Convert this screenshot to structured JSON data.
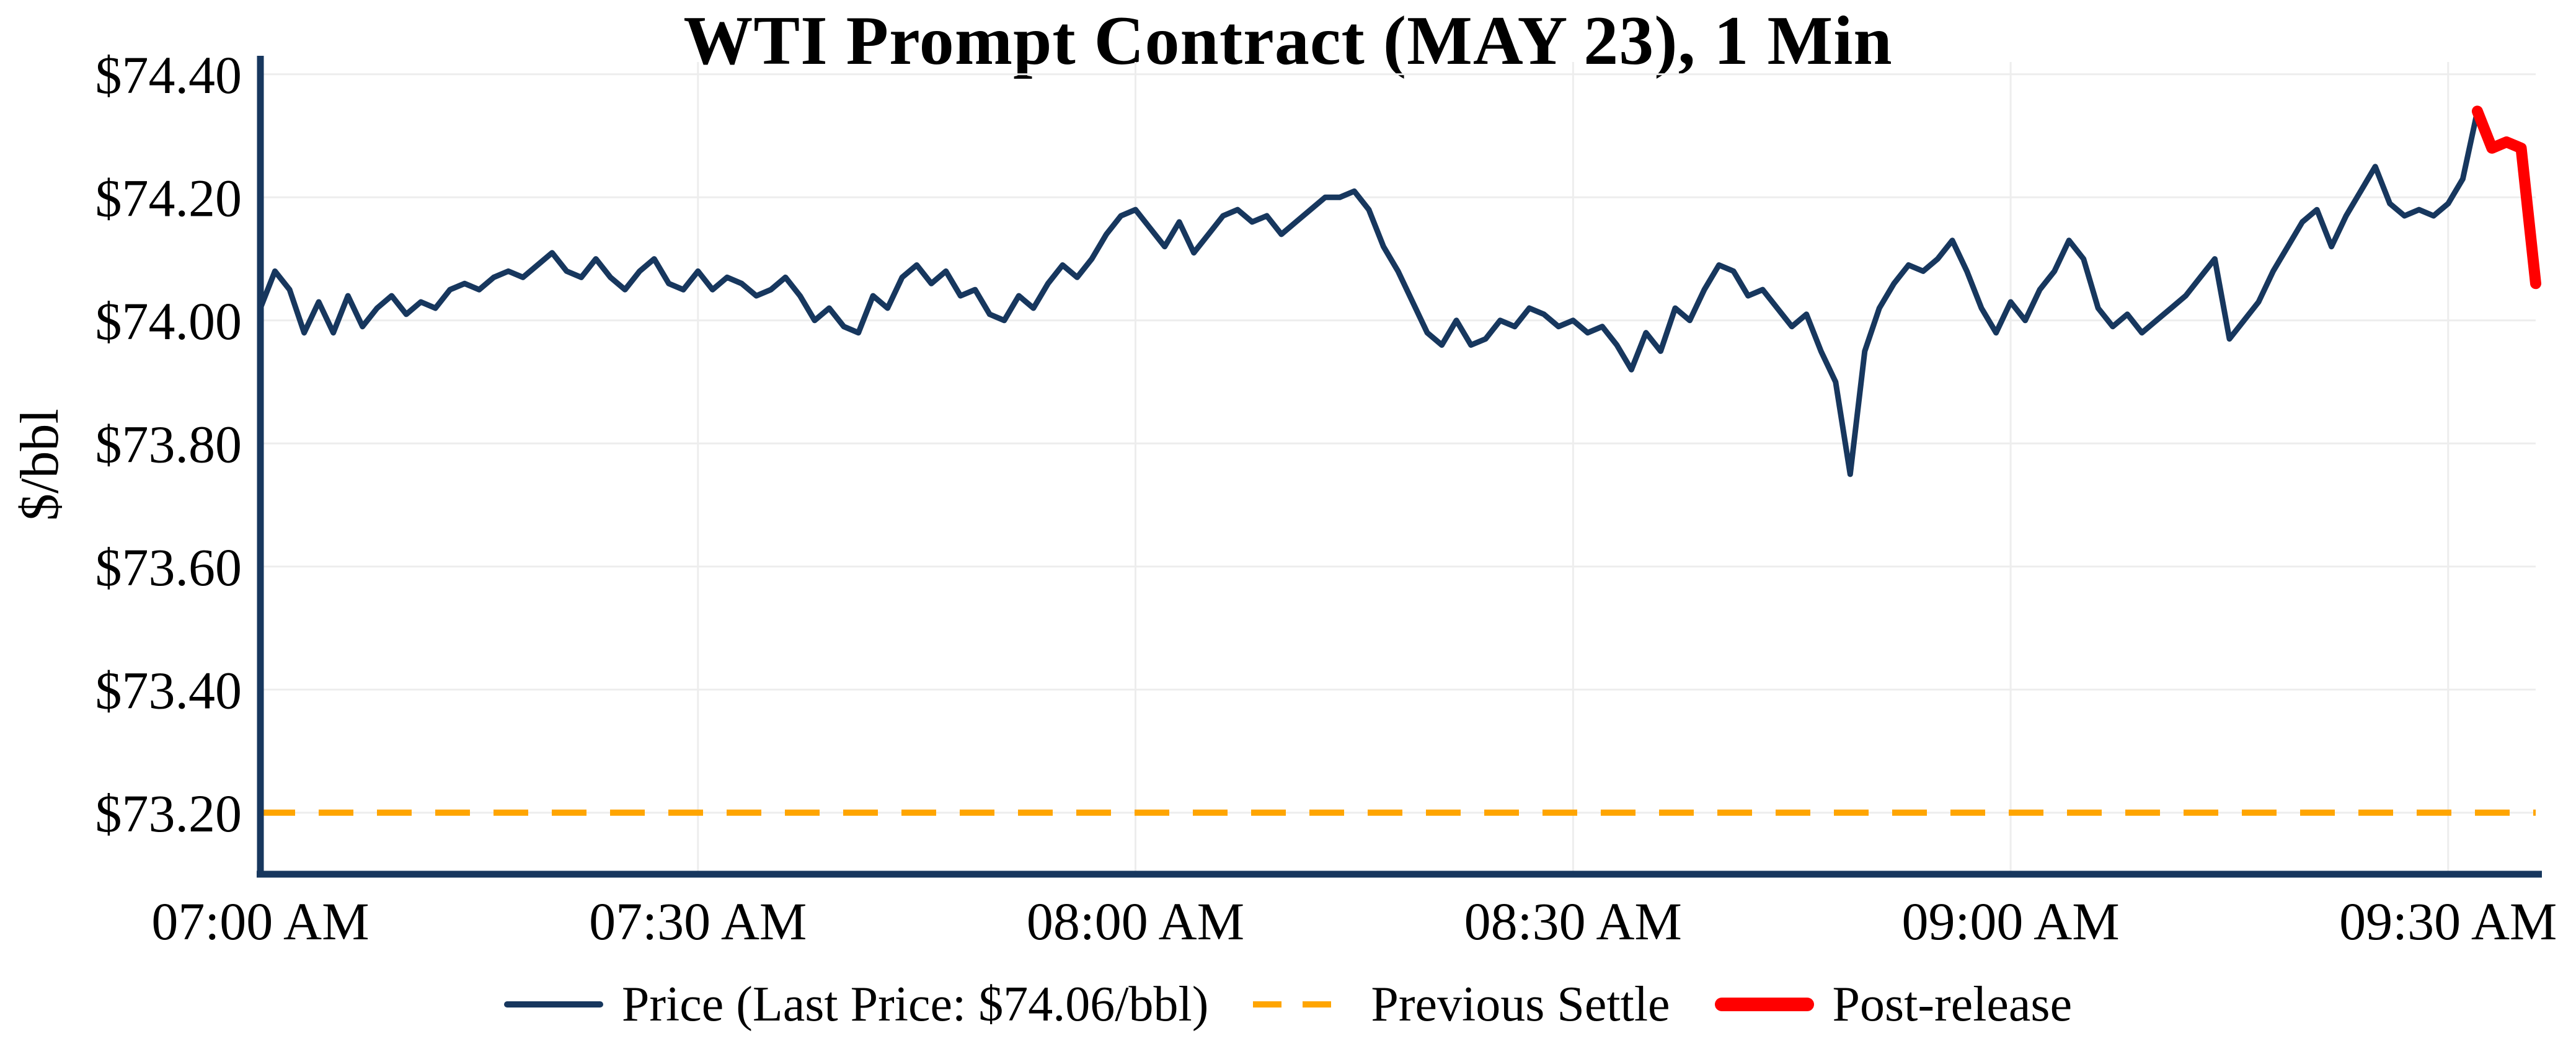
{
  "chart_data": {
    "type": "line",
    "title": "WTI Prompt Contract (MAY 23), 1 Min",
    "xlabel": "",
    "ylabel": "$/bbl",
    "x_start_time": "07:00 AM",
    "x_interval_minutes": 1,
    "xlim": [
      0,
      156
    ],
    "ylim": [
      73.1,
      74.42
    ],
    "xticks": {
      "values": [
        0,
        30,
        60,
        90,
        120,
        150
      ],
      "labels": [
        "07:00 AM",
        "07:30 AM",
        "08:00 AM",
        "08:30 AM",
        "09:00 AM",
        "09:30 AM"
      ]
    },
    "yticks": {
      "values": [
        73.2,
        73.4,
        73.6,
        73.8,
        74.0,
        74.2,
        74.4
      ],
      "labels": [
        "$73.20",
        "$73.40",
        "$73.60",
        "$73.80",
        "$74.00",
        "$74.20",
        "$74.40"
      ]
    },
    "previous_settle": 73.2,
    "last_price": 74.06,
    "post_release_start_index": 152,
    "colors": {
      "price": "#17375e",
      "settle": "#ffa500",
      "post_release": "#ff0000",
      "axis": "#17375e"
    },
    "series": [
      {
        "name": "Price",
        "color": "#17375e",
        "values": [
          74.02,
          74.08,
          74.05,
          73.98,
          74.03,
          73.98,
          74.04,
          73.99,
          74.02,
          74.04,
          74.01,
          74.03,
          74.02,
          74.05,
          74.06,
          74.05,
          74.07,
          74.08,
          74.07,
          74.09,
          74.11,
          74.08,
          74.07,
          74.1,
          74.07,
          74.05,
          74.08,
          74.1,
          74.06,
          74.05,
          74.08,
          74.05,
          74.07,
          74.06,
          74.04,
          74.05,
          74.07,
          74.04,
          74.0,
          74.02,
          73.99,
          73.98,
          74.04,
          74.02,
          74.07,
          74.09,
          74.06,
          74.08,
          74.04,
          74.05,
          74.01,
          74.0,
          74.04,
          74.02,
          74.06,
          74.09,
          74.07,
          74.1,
          74.14,
          74.17,
          74.18,
          74.15,
          74.12,
          74.16,
          74.11,
          74.14,
          74.17,
          74.18,
          74.16,
          74.17,
          74.14,
          74.16,
          74.18,
          74.2,
          74.2,
          74.21,
          74.18,
          74.12,
          74.08,
          74.03,
          73.98,
          73.96,
          74.0,
          73.96,
          73.97,
          74.0,
          73.99,
          74.02,
          74.01,
          73.99,
          74.0,
          73.98,
          73.99,
          73.96,
          73.92,
          73.98,
          73.95,
          74.02,
          74.0,
          74.05,
          74.09,
          74.08,
          74.04,
          74.05,
          74.02,
          73.99,
          74.01,
          73.95,
          73.9,
          73.75,
          73.95,
          74.02,
          74.06,
          74.09,
          74.08,
          74.1,
          74.13,
          74.08,
          74.02,
          73.98,
          74.03,
          74.0,
          74.05,
          74.08,
          74.13,
          74.1,
          74.02,
          73.99,
          74.01,
          73.98,
          74.0,
          74.02,
          74.04,
          74.07,
          74.1,
          73.97,
          74.0,
          74.03,
          74.08,
          74.12,
          74.16,
          74.18,
          74.12,
          74.17,
          74.21,
          74.25,
          74.19,
          74.17,
          74.18,
          74.17,
          74.19,
          74.23,
          74.34,
          74.28,
          74.29,
          74.28,
          74.06
        ]
      }
    ],
    "legend": [
      {
        "label": "Price (Last Price: $74.06/bbl)",
        "color": "#17375e",
        "style": "solid"
      },
      {
        "label": "Previous Settle",
        "color": "#ffa500",
        "style": "dashed"
      },
      {
        "label": "Post-release",
        "color": "#ff0000",
        "style": "solid-thick"
      }
    ],
    "legend_position": "bottom-center",
    "grid": true
  }
}
